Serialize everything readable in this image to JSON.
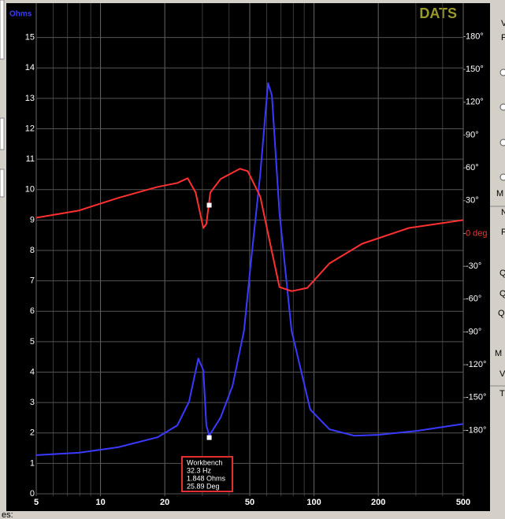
{
  "chart_data": {
    "type": "line",
    "title": "DATS",
    "y_label": "Ohms",
    "xscale": "log",
    "xlim": [
      5,
      500
    ],
    "xticks": [
      5,
      10,
      20,
      50,
      100,
      200,
      500
    ],
    "minor_xticks": [
      6,
      7,
      8,
      9,
      30,
      40,
      60,
      70,
      80,
      90,
      300,
      400
    ],
    "ylim": [
      0,
      16
    ],
    "yticks": [
      0,
      1,
      2,
      3,
      4,
      5,
      6,
      7,
      8,
      9,
      10,
      11,
      12,
      13,
      14,
      15
    ],
    "y2lim": [
      -238,
      207
    ],
    "y2ticks": [
      {
        "value": 180,
        "label": "180°"
      },
      {
        "value": 150,
        "label": "150°"
      },
      {
        "value": 120,
        "label": "120°"
      },
      {
        "value": 90,
        "label": "90°"
      },
      {
        "value": 60,
        "label": "60°"
      },
      {
        "value": 30,
        "label": "30°"
      },
      {
        "value": 0,
        "label": "0 deg"
      },
      {
        "value": -30,
        "label": "-30°"
      },
      {
        "value": -60,
        "label": "-60°"
      },
      {
        "value": -90,
        "label": "-90°"
      },
      {
        "value": -120,
        "label": "-120°"
      },
      {
        "value": -150,
        "label": "-150°"
      },
      {
        "value": -180,
        "label": "-180°"
      }
    ],
    "grid": true,
    "series": [
      {
        "color": "#3a3aff",
        "x": [
          5,
          7.9,
          12.1,
          18.5,
          22.9,
          26,
          28.7,
          30.3,
          31.3,
          32.3,
          36.5,
          41.5,
          47,
          51.2,
          56,
          60.9,
          63.5,
          68.9,
          78.5,
          96,
          118,
          154,
          200,
          305,
          500
        ],
        "values": [
          1.27,
          1.35,
          1.53,
          1.86,
          2.25,
          3.03,
          4.45,
          4.06,
          2.25,
          1.91,
          2.51,
          3.54,
          5.36,
          7.94,
          10.5,
          13.5,
          13.1,
          9.24,
          5.36,
          2.77,
          2.12,
          1.91,
          1.94,
          2.07,
          2.3
        ]
      },
      {
        "color": "#ff3030",
        "axis": "y2",
        "x": [
          5,
          7.9,
          12.1,
          18.5,
          22.9,
          25.6,
          27.9,
          30.3,
          31.3,
          32.7,
          36.5,
          45,
          48.9,
          56,
          63.5,
          68.9,
          78.5,
          93,
          118,
          168,
          278,
          500
        ],
        "values": [
          14.4,
          20.9,
          32.5,
          42.6,
          46.2,
          50.5,
          37.5,
          5,
          8.7,
          37.5,
          49.8,
          59.2,
          57,
          33.9,
          -16.6,
          -49,
          -52.7,
          -49.8,
          -27.4,
          -9.4,
          5,
          12.3
        ]
      }
    ],
    "cursor": {
      "title": "Workbench",
      "x": 32.3,
      "x_label": "32.3 Hz",
      "impedance": 1.848,
      "impedance_label": "1.848 Ohms",
      "phase": 25.89,
      "phase_label": "25.89 Deg"
    }
  },
  "side_panel": {
    "labels": [
      "V",
      "F",
      "M",
      "N",
      "F",
      "Q",
      "Q",
      "Q",
      "M",
      "V",
      "T"
    ],
    "footer": "es:"
  }
}
